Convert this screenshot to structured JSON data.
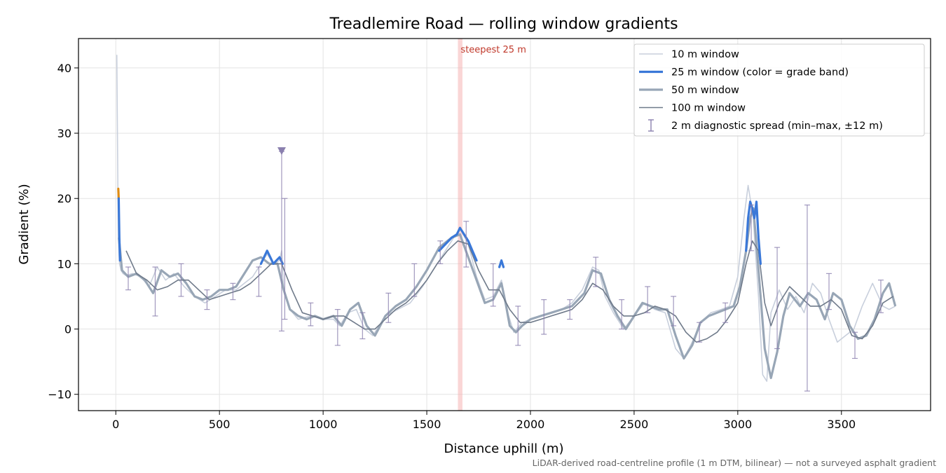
{
  "chart_data": {
    "type": "line",
    "title": "Treadlemire Road — rolling window gradients",
    "xlabel": "Distance uphill (m)",
    "ylabel": "Gradient (%)",
    "xlim": [
      -180,
      3930
    ],
    "ylim": [
      -12.5,
      44.5
    ],
    "xticks": [
      0,
      500,
      1000,
      1500,
      2000,
      2500,
      3000,
      3500
    ],
    "yticks": [
      -10,
      0,
      10,
      20,
      30,
      40
    ],
    "grid": true,
    "legend_position": "upper right",
    "annotation": {
      "label": "steepest 25 m",
      "x_start": 1650,
      "x_end": 1672,
      "color": "#f5b5b5"
    },
    "peak_marker": {
      "x": 800,
      "y": 27.2,
      "color": "#8a7fae"
    },
    "footnote": "LiDAR-derived road-centreline profile (1 m DTM, bilinear) — not a surveyed asphalt gradient",
    "series": [
      {
        "name": "10 m window",
        "color": "#c8cfdc",
        "width": 1.6,
        "x": [
          5,
          8,
          12,
          18,
          25,
          35,
          50,
          80,
          120,
          160,
          200,
          240,
          280,
          330,
          380,
          430,
          480,
          530,
          580,
          620,
          660,
          700,
          730,
          760,
          790,
          800,
          810,
          840,
          880,
          940,
          1000,
          1050,
          1080,
          1120,
          1160,
          1200,
          1240,
          1300,
          1360,
          1420,
          1480,
          1540,
          1600,
          1640,
          1660,
          1700,
          1740,
          1780,
          1820,
          1860,
          1890,
          1920,
          1960,
          2000,
          2050,
          2100,
          2150,
          2200,
          2250,
          2300,
          2330,
          2360,
          2400,
          2450,
          2500,
          2550,
          2600,
          2650,
          2700,
          2740,
          2780,
          2820,
          2870,
          2920,
          2960,
          3000,
          3030,
          3050,
          3065,
          3075,
          3085,
          3100,
          3120,
          3140,
          3160,
          3200,
          3240,
          3280,
          3320,
          3360,
          3400,
          3440,
          3480,
          3520,
          3560,
          3600,
          3650,
          3700,
          3730,
          3760
        ],
        "y": [
          42,
          30,
          14,
          10,
          9,
          8.5,
          8.2,
          8.5,
          8,
          6.5,
          9.5,
          7.5,
          8.5,
          6.5,
          5,
          4,
          5,
          6,
          6,
          7,
          8,
          10,
          11.5,
          10,
          10.5,
          12,
          6,
          3,
          1.5,
          2,
          1.5,
          1.5,
          0.5,
          2.5,
          3,
          0,
          -1,
          2,
          3,
          4,
          6.5,
          9.5,
          12.5,
          14.5,
          15.5,
          13,
          8,
          4.5,
          5,
          7.5,
          2.5,
          -0.5,
          1,
          1.5,
          2,
          2.5,
          3,
          4,
          6,
          9.5,
          9,
          5,
          2.5,
          0,
          2,
          4,
          3,
          2.5,
          -3,
          -4.5,
          -2,
          1,
          2.5,
          3,
          3.5,
          8,
          17,
          22,
          19,
          17,
          12,
          5,
          -7,
          -8,
          2.5,
          6,
          3,
          5,
          2.5,
          7,
          5.5,
          1.5,
          -2,
          -1,
          0,
          3.5,
          7,
          3.5,
          3,
          3.5
        ]
      },
      {
        "name": "50 m window",
        "color": "#98a6b6",
        "width": 3.2,
        "x": [
          15,
          30,
          60,
          100,
          140,
          180,
          220,
          260,
          300,
          340,
          380,
          420,
          460,
          500,
          540,
          580,
          620,
          660,
          700,
          740,
          780,
          810,
          840,
          880,
          920,
          960,
          1000,
          1050,
          1090,
          1130,
          1170,
          1210,
          1250,
          1300,
          1350,
          1400,
          1450,
          1500,
          1560,
          1620,
          1660,
          1700,
          1740,
          1780,
          1820,
          1860,
          1880,
          1900,
          1930,
          1960,
          2000,
          2050,
          2100,
          2150,
          2200,
          2260,
          2300,
          2340,
          2380,
          2420,
          2460,
          2500,
          2540,
          2580,
          2620,
          2660,
          2700,
          2740,
          2780,
          2820,
          2860,
          2900,
          2940,
          2980,
          3010,
          3040,
          3060,
          3075,
          3090,
          3110,
          3130,
          3160,
          3190,
          3220,
          3250,
          3300,
          3340,
          3380,
          3420,
          3460,
          3500,
          3540,
          3580,
          3620,
          3660,
          3700,
          3730,
          3760
        ],
        "y": [
          14,
          9,
          8,
          8.5,
          7.5,
          5.5,
          9,
          8,
          8.5,
          7,
          5,
          4.5,
          5,
          6,
          6,
          6.5,
          8.5,
          10.5,
          11,
          10,
          10,
          6,
          3,
          2,
          1.5,
          2,
          1.5,
          2,
          0.5,
          3,
          4,
          0.5,
          -1,
          2,
          3.5,
          4.5,
          6.5,
          9,
          12.5,
          14,
          14.5,
          11,
          7.5,
          4,
          4.5,
          7,
          4,
          0.5,
          -0.5,
          0.5,
          1.5,
          2,
          2.5,
          3,
          3.5,
          5.5,
          9,
          8.5,
          4.5,
          2,
          0,
          2,
          4,
          3.5,
          3,
          3,
          -1,
          -4.5,
          -2.5,
          1,
          2,
          2.5,
          3,
          3.5,
          6.5,
          12,
          17,
          18.5,
          13,
          5,
          -3,
          -7.5,
          -3.5,
          2,
          5.5,
          3.5,
          5.5,
          4.5,
          1.5,
          5.5,
          4.5,
          0.5,
          -1.5,
          -1,
          1.5,
          5.5,
          7,
          3.5
        ]
      },
      {
        "name": "100 m window",
        "color": "#6f7a8a",
        "width": 1.6,
        "x": [
          50,
          100,
          150,
          200,
          250,
          300,
          350,
          400,
          450,
          500,
          550,
          600,
          650,
          700,
          750,
          800,
          850,
          900,
          950,
          1000,
          1050,
          1100,
          1150,
          1200,
          1250,
          1300,
          1350,
          1400,
          1450,
          1500,
          1550,
          1600,
          1650,
          1700,
          1750,
          1800,
          1850,
          1900,
          1950,
          2000,
          2050,
          2100,
          2150,
          2200,
          2250,
          2300,
          2350,
          2400,
          2450,
          2500,
          2550,
          2600,
          2650,
          2700,
          2750,
          2800,
          2850,
          2900,
          2950,
          3000,
          3040,
          3070,
          3100,
          3130,
          3160,
          3200,
          3250,
          3300,
          3350,
          3400,
          3450,
          3500,
          3550,
          3600,
          3650,
          3700,
          3750
        ],
        "y": [
          12,
          8.5,
          7.5,
          6,
          6.5,
          7.5,
          7.5,
          6,
          4.5,
          5,
          5.5,
          6,
          7,
          8.5,
          10,
          10,
          6,
          2.5,
          2,
          1.5,
          2,
          2,
          1,
          0,
          0,
          1.5,
          3,
          4,
          5.5,
          7.5,
          10,
          12,
          13.5,
          13,
          9,
          6,
          6,
          3,
          1,
          1,
          1.5,
          2,
          2.5,
          3,
          4.5,
          7,
          6,
          3.5,
          2,
          2,
          2.5,
          3.5,
          3,
          2,
          -0.5,
          -2,
          -1.5,
          -0.5,
          1.5,
          4,
          10,
          13.5,
          12,
          4,
          0.5,
          4,
          6.5,
          5,
          3.5,
          3.5,
          4.5,
          3,
          -1,
          -1.5,
          0.5,
          4,
          5
        ]
      },
      {
        "name": "25 m window (color = grade band)",
        "color": "#3a78d8",
        "width": 3.2,
        "segments": [
          {
            "color": "#e08c12",
            "x": [
              12,
              14
            ],
            "y": [
              21.5,
              20
            ]
          },
          {
            "color": "#3a78d8",
            "x": [
              14,
              17,
              20
            ],
            "y": [
              20,
              14,
              10.5
            ]
          },
          {
            "color": "#3a78d8",
            "x": [
              700,
              715,
              730,
              745,
              760,
              775,
              790,
              805
            ],
            "y": [
              10,
              11,
              12,
              11,
              10,
              10.5,
              11,
              10
            ]
          },
          {
            "color": "#3a78d8",
            "x": [
              1560,
              1590,
              1620,
              1645,
              1660,
              1680,
              1700,
              1720,
              1740
            ],
            "y": [
              12,
              13,
              14,
              14.5,
              15.5,
              14.5,
              13.5,
              12,
              10.5
            ]
          },
          {
            "color": "#3a78d8",
            "x": [
              1850,
              1860,
              1870
            ],
            "y": [
              9.5,
              10.5,
              9.5
            ]
          },
          {
            "color": "#3a78d8",
            "x": [
              3040,
              3050,
              3060,
              3070,
              3080,
              3090,
              3100,
              3110
            ],
            "y": [
              12,
              17,
              19.5,
              18.5,
              17,
              19.5,
              14,
              10
            ]
          }
        ]
      }
    ],
    "errorbars": {
      "name": "2 m diagnostic spread (min–max, ±12 m)",
      "color": "#8a7fae",
      "points": [
        {
          "x": 60,
          "low": 6,
          "high": 9.5
        },
        {
          "x": 190,
          "low": 2,
          "high": 9.5
        },
        {
          "x": 315,
          "low": 5,
          "high": 10
        },
        {
          "x": 440,
          "low": 3,
          "high": 6
        },
        {
          "x": 565,
          "low": 4.5,
          "high": 7
        },
        {
          "x": 690,
          "low": 5,
          "high": 9.5
        },
        {
          "x": 800,
          "low": -0.3,
          "high": 27.2
        },
        {
          "x": 815,
          "low": 1.5,
          "high": 20
        },
        {
          "x": 940,
          "low": 0.5,
          "high": 4
        },
        {
          "x": 1070,
          "low": -2.5,
          "high": 3
        },
        {
          "x": 1190,
          "low": -1.5,
          "high": 2.5
        },
        {
          "x": 1315,
          "low": 1,
          "high": 5.5
        },
        {
          "x": 1440,
          "low": 5,
          "high": 10
        },
        {
          "x": 1565,
          "low": 10,
          "high": 13.5
        },
        {
          "x": 1690,
          "low": 9.5,
          "high": 16.5
        },
        {
          "x": 1820,
          "low": 3.5,
          "high": 10
        },
        {
          "x": 1940,
          "low": -2.5,
          "high": 3.5
        },
        {
          "x": 2065,
          "low": -0.8,
          "high": 4.5
        },
        {
          "x": 2190,
          "low": 1.5,
          "high": 4.5
        },
        {
          "x": 2315,
          "low": 6.5,
          "high": 11
        },
        {
          "x": 2440,
          "low": 0,
          "high": 4.5
        },
        {
          "x": 2565,
          "low": 2.5,
          "high": 6.5
        },
        {
          "x": 2690,
          "low": 0.5,
          "high": 5
        },
        {
          "x": 2815,
          "low": -2,
          "high": 1
        },
        {
          "x": 2940,
          "low": 1,
          "high": 4
        },
        {
          "x": 3065,
          "low": 12,
          "high": 19
        },
        {
          "x": 3190,
          "low": -3,
          "high": 12.5
        },
        {
          "x": 3335,
          "low": -9.5,
          "high": 19
        },
        {
          "x": 3440,
          "low": 3,
          "high": 8.5
        },
        {
          "x": 3565,
          "low": -4.5,
          "high": -0.5
        },
        {
          "x": 3690,
          "low": 2.5,
          "high": 7.5
        }
      ]
    }
  }
}
